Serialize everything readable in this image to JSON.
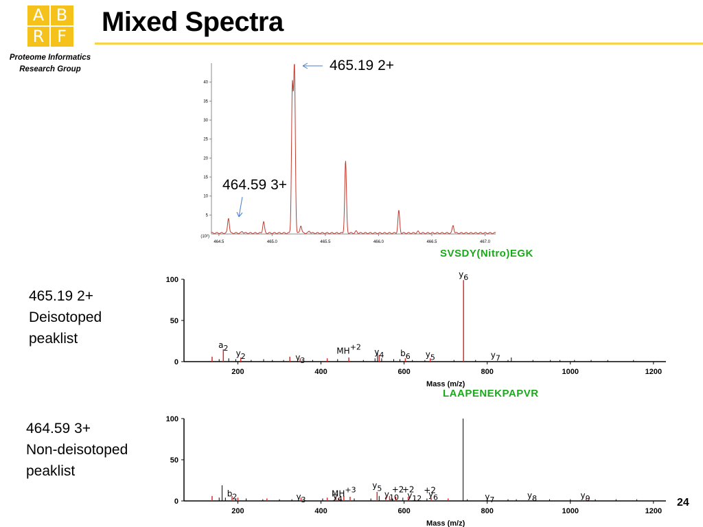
{
  "logo": {
    "letters": [
      "A",
      "B",
      "R",
      "F"
    ]
  },
  "group": {
    "line1": "Proteome Informatics",
    "line2": "Research Group"
  },
  "title": "Mixed Spectra",
  "page_number": "24",
  "chart_data": [
    {
      "type": "line",
      "label_mz_left": "464.59 3+",
      "label_mz_right": "465.19 2+",
      "y_multiplier": "(10²)",
      "yticks": [
        "5",
        "10",
        "15",
        "20",
        "25",
        "30",
        "35",
        "40"
      ],
      "xticks": [
        "464.5",
        "465.0",
        "465.5",
        "466.0",
        "466.5",
        "467.0"
      ],
      "xlim": [
        464.43,
        467.1
      ],
      "ylim": [
        0,
        45
      ],
      "peaks": [
        {
          "x": 464.59,
          "y": 4.0
        },
        {
          "x": 464.72,
          "y": 0.4
        },
        {
          "x": 464.92,
          "y": 3.0
        },
        {
          "x": 465.19,
          "y": 38.0
        },
        {
          "x": 465.21,
          "y": 43.0
        },
        {
          "x": 465.27,
          "y": 2.0
        },
        {
          "x": 465.35,
          "y": 0.5
        },
        {
          "x": 465.69,
          "y": 19.0
        },
        {
          "x": 465.79,
          "y": 0.5
        },
        {
          "x": 466.19,
          "y": 5.9
        },
        {
          "x": 466.37,
          "y": 0.4
        },
        {
          "x": 466.7,
          "y": 2.0
        }
      ]
    },
    {
      "type": "bar",
      "side_label": [
        "465.19 2+",
        "Deisotoped",
        "peaklist"
      ],
      "peptide": "SVSDY(Nitro)EGK",
      "xlabel": "Mass (m/z)",
      "xticks": [
        "200",
        "400",
        "600",
        "800",
        "1000",
        "1200"
      ],
      "yticks": [
        "0",
        "50",
        "100"
      ],
      "xlim": [
        110,
        1230
      ],
      "ylim": [
        0,
        100
      ],
      "red_peaks": [
        [
          138,
          6
        ],
        [
          165,
          15
        ],
        [
          207,
          5
        ],
        [
          325,
          6
        ],
        [
          350,
          4
        ],
        [
          415,
          4
        ],
        [
          467,
          5
        ],
        [
          540,
          8
        ],
        [
          603,
          4
        ],
        [
          663,
          4
        ],
        [
          743,
          99
        ]
      ],
      "black_peaks": [
        [
          155,
          3
        ],
        [
          178,
          4
        ],
        [
          195,
          3
        ],
        [
          232,
          2
        ],
        [
          262,
          3
        ],
        [
          283,
          2
        ],
        [
          310,
          2
        ],
        [
          380,
          2
        ],
        [
          440,
          3
        ],
        [
          502,
          2
        ],
        [
          530,
          4
        ],
        [
          536,
          11
        ],
        [
          546,
          4
        ],
        [
          575,
          3
        ],
        [
          590,
          3
        ],
        [
          620,
          2
        ],
        [
          650,
          2
        ],
        [
          720,
          2
        ],
        [
          772,
          2
        ],
        [
          850,
          2
        ],
        [
          858,
          5
        ],
        [
          910,
          2
        ],
        [
          952,
          2
        ],
        [
          975,
          2
        ],
        [
          1010,
          2
        ],
        [
          1050,
          2
        ],
        [
          1090,
          2
        ],
        [
          1152,
          2
        ]
      ],
      "annotations": [
        {
          "x": 743,
          "y": 100,
          "base": "y",
          "sub": "6"
        },
        {
          "x": 165,
          "y": 14,
          "base": "a",
          "sub": "2"
        },
        {
          "x": 207,
          "y": 4,
          "base": "y",
          "sub": "2"
        },
        {
          "x": 350,
          "y": -1,
          "base": "y",
          "sub": "3"
        },
        {
          "x": 467,
          "y": 7,
          "base": "MH",
          "sup": "+2"
        },
        {
          "x": 540,
          "y": 6,
          "base": "y",
          "sub": "4"
        },
        {
          "x": 603,
          "y": 4,
          "base": "b",
          "sub": "6"
        },
        {
          "x": 663,
          "y": 3,
          "base": "y",
          "sub": "5"
        },
        {
          "x": 820,
          "y": 2,
          "base": "y",
          "sub": "7"
        }
      ]
    },
    {
      "type": "bar",
      "side_label": [
        "464.59 3+",
        "Non-deisotoped",
        "peaklist"
      ],
      "peptide": "LAAPENEKPAPVR",
      "xlabel": "Mass (m/z)",
      "xticks": [
        "200",
        "400",
        "600",
        "800",
        "1000",
        "1200"
      ],
      "yticks": [
        "0",
        "50",
        "100"
      ],
      "xlim": [
        110,
        1230
      ],
      "ylim": [
        0,
        100
      ],
      "red_peaks": [
        [
          138,
          6
        ],
        [
          186,
          6
        ],
        [
          200,
          4
        ],
        [
          270,
          3
        ],
        [
          352,
          4
        ],
        [
          415,
          4
        ],
        [
          436,
          5
        ],
        [
          442,
          4
        ],
        [
          455,
          6
        ],
        [
          470,
          5
        ],
        [
          535,
          11
        ],
        [
          556,
          5
        ],
        [
          565,
          6
        ],
        [
          580,
          5
        ],
        [
          610,
          5
        ],
        [
          665,
          4
        ],
        [
          706,
          3
        ],
        [
          910,
          3
        ],
        [
          1038,
          3
        ]
      ],
      "black_peaks": [
        [
          155,
          4
        ],
        [
          162,
          19
        ],
        [
          170,
          4
        ],
        [
          195,
          3
        ],
        [
          220,
          3
        ],
        [
          260,
          2
        ],
        [
          300,
          2
        ],
        [
          330,
          2
        ],
        [
          404,
          3
        ],
        [
          448,
          6
        ],
        [
          480,
          3
        ],
        [
          520,
          3
        ],
        [
          540,
          6
        ],
        [
          572,
          3
        ],
        [
          597,
          4
        ],
        [
          625,
          3
        ],
        [
          655,
          3
        ],
        [
          742,
          100
        ],
        [
          752,
          2
        ],
        [
          800,
          2
        ],
        [
          850,
          2
        ],
        [
          870,
          2
        ],
        [
          950,
          2
        ],
        [
          1000,
          2
        ],
        [
          1060,
          2
        ],
        [
          1110,
          2
        ],
        [
          1160,
          2
        ]
      ],
      "annotations": [
        {
          "x": 186,
          "y": 3,
          "base": "b",
          "sub": "2"
        },
        {
          "x": 352,
          "y": -1,
          "base": "y",
          "sub": "3"
        },
        {
          "x": 440,
          "y": 0,
          "base": "y",
          "sub": "4"
        },
        {
          "x": 455,
          "y": 3,
          "base": "MH",
          "sup": "+3"
        },
        {
          "x": 535,
          "y": 13,
          "base": "y",
          "sub": "5"
        },
        {
          "x": 570,
          "y": 2,
          "base": "y",
          "sub": "10"
        },
        {
          "x": 585,
          "y": 8,
          "base": "+2",
          "sub": ""
        },
        {
          "x": 610,
          "y": 8,
          "base": "+2",
          "sub": ""
        },
        {
          "x": 625,
          "y": 1,
          "base": "y",
          "sub": "12"
        },
        {
          "x": 662,
          "y": 7,
          "base": "+2",
          "sub": ""
        },
        {
          "x": 670,
          "y": 2,
          "base": "y",
          "sub": "6"
        },
        {
          "x": 806,
          "y": -1,
          "base": "y",
          "sub": "7"
        },
        {
          "x": 908,
          "y": 1,
          "base": "y",
          "sub": "8"
        },
        {
          "x": 1036,
          "y": 1,
          "base": "y",
          "sub": "9"
        }
      ]
    }
  ]
}
